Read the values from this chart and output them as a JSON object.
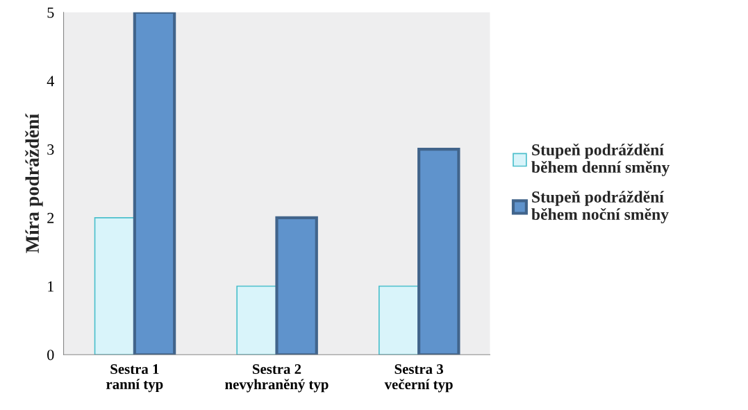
{
  "chart_data": {
    "type": "bar",
    "ylabel": "Míra podráždění",
    "categories": [
      "Sestra 1\nranní typ",
      "Sestra 2\nnevyhraněný typ",
      "Sestra 3\nvečerní typ"
    ],
    "series": [
      {
        "name": "Stupeň podráždění\nběhem denní směny",
        "color": "#d9f4fa",
        "values": [
          2,
          1,
          1
        ]
      },
      {
        "name": "Stupeň podráždění\nběhem noční směny",
        "color": "#5f93cc",
        "values": [
          5,
          2,
          3
        ]
      }
    ],
    "ylim": [
      0,
      5
    ],
    "yticks": [
      0,
      1,
      2,
      3,
      4,
      5
    ],
    "grid": false,
    "legend": "right"
  }
}
